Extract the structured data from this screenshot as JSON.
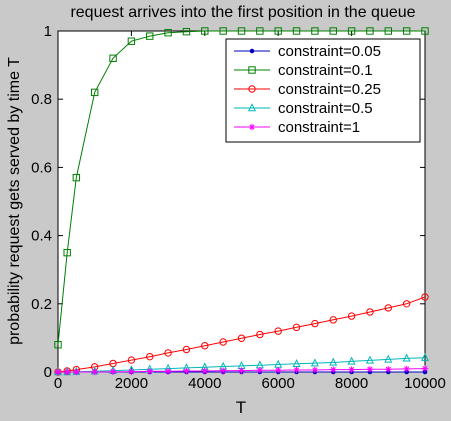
{
  "chart_data": {
    "type": "line",
    "title": "request arrives into the first position in the queue",
    "xlabel": "T",
    "ylabel": "probability request gets served by time T",
    "xlim": [
      0,
      10000
    ],
    "ylim": [
      0,
      1
    ],
    "x_ticks": [
      0,
      2000,
      4000,
      6000,
      8000,
      10000
    ],
    "x_tick_labels": [
      "0",
      "2000",
      "4000",
      "6000",
      "8000",
      "10000"
    ],
    "y_ticks": [
      0,
      0.2,
      0.4,
      0.6,
      0.8,
      1
    ],
    "y_tick_labels": [
      "0",
      "0.2",
      "0.4",
      "0.6",
      "0.8",
      "1"
    ],
    "grid": false,
    "legend_position": "top-right",
    "x": [
      0,
      250,
      500,
      1000,
      1500,
      2000,
      2500,
      3000,
      3500,
      4000,
      4500,
      5000,
      5500,
      6000,
      6500,
      7000,
      7500,
      8000,
      8500,
      9000,
      9500,
      10000
    ],
    "series": [
      {
        "name": "constraint=0.05",
        "color": "#0000c0",
        "marker": "dot",
        "values": [
          0.0,
          0.0,
          0.0,
          0.0,
          0.0,
          0.0,
          0.0,
          0.0,
          0.0,
          0.0,
          0.0,
          0.0,
          0.0,
          0.0,
          0.0,
          0.0,
          0.0,
          0.0,
          0.0,
          0.0,
          0.0,
          0.0
        ]
      },
      {
        "name": "constraint=0.1",
        "color": "#008000",
        "marker": "square",
        "values": [
          0.08,
          0.35,
          0.57,
          0.82,
          0.92,
          0.97,
          0.985,
          0.995,
          0.998,
          1.0,
          1.0,
          1.0,
          1.0,
          1.0,
          1.0,
          1.0,
          1.0,
          1.0,
          1.0,
          1.0,
          1.0,
          1.0
        ]
      },
      {
        "name": "constraint=0.25",
        "color": "#ff0000",
        "marker": "circle",
        "values": [
          0.0,
          0.003,
          0.007,
          0.015,
          0.025,
          0.035,
          0.045,
          0.056,
          0.066,
          0.077,
          0.088,
          0.099,
          0.11,
          0.12,
          0.131,
          0.142,
          0.153,
          0.164,
          0.176,
          0.188,
          0.2,
          0.22
        ]
      },
      {
        "name": "constraint=0.5",
        "color": "#00b8b8",
        "marker": "triangle",
        "values": [
          0.0,
          0.0,
          0.001,
          0.002,
          0.004,
          0.006,
          0.008,
          0.01,
          0.012,
          0.014,
          0.016,
          0.018,
          0.02,
          0.022,
          0.024,
          0.026,
          0.028,
          0.031,
          0.034,
          0.037,
          0.04,
          0.042
        ]
      },
      {
        "name": "constraint=1",
        "color": "#ff00ff",
        "marker": "star",
        "values": [
          0.0,
          0.0,
          0.0,
          0.0,
          0.001,
          0.001,
          0.002,
          0.002,
          0.003,
          0.003,
          0.004,
          0.004,
          0.005,
          0.005,
          0.006,
          0.006,
          0.007,
          0.007,
          0.008,
          0.008,
          0.009,
          0.01
        ]
      }
    ]
  }
}
